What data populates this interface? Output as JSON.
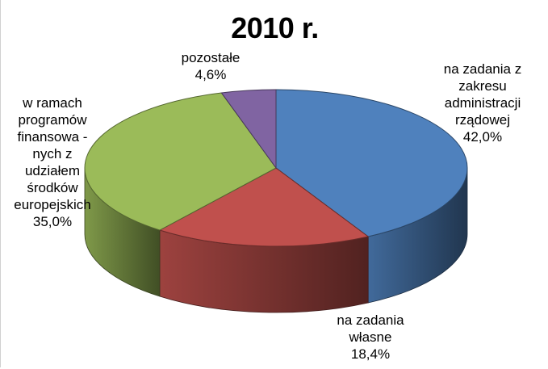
{
  "chart_data": {
    "type": "pie",
    "title": "2010 r.",
    "slices": [
      {
        "label_lines": [
          "na zadania z",
          "zakresu",
          "administracji",
          "rządowej"
        ],
        "value": 42.0,
        "value_label": "42,0%",
        "color": "#4f81bd"
      },
      {
        "label_lines": [
          "na zadania",
          "własne"
        ],
        "value": 18.4,
        "value_label": "18,4%",
        "color": "#c0504d"
      },
      {
        "label_lines": [
          "w ramach",
          "programów",
          "finansowa -",
          "nych z",
          "udziałem",
          "środków",
          "europejskich"
        ],
        "value": 35.0,
        "value_label": "35,0%",
        "color": "#9bbb59"
      },
      {
        "label_lines": [
          "pozostałe"
        ],
        "value": 4.6,
        "value_label": "4,6%",
        "color": "#8064a2"
      }
    ],
    "legend": "none",
    "style": "3d"
  }
}
